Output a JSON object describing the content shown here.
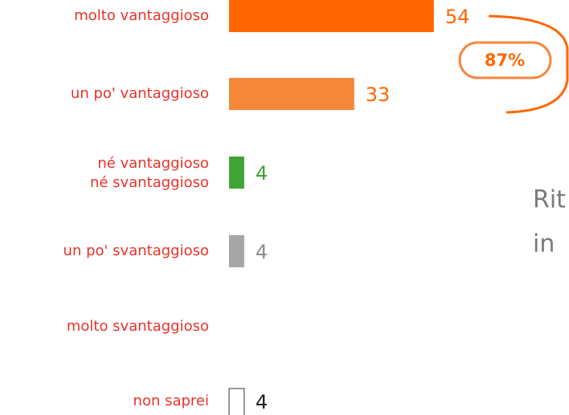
{
  "chart_data": {
    "type": "bar",
    "orientation": "horizontal",
    "categories": [
      "molto vantaggioso",
      "un po' vantaggioso",
      "né vantaggioso\nné svantaggioso",
      "un po' svantaggioso",
      "molto svantaggioso",
      "non saprei"
    ],
    "values": [
      54,
      33,
      4,
      4,
      null,
      4
    ],
    "colors": [
      "#ff6600",
      "#f5873a",
      "#3fa535",
      "#a6a6a6",
      null,
      "#ffffff"
    ],
    "label_colors": [
      "#ff6600",
      "#ff6600",
      "#3fa535",
      "#8c8c8c",
      null,
      "#222222"
    ],
    "annotation": "87%",
    "side_text": [
      "Rit",
      "in"
    ]
  }
}
